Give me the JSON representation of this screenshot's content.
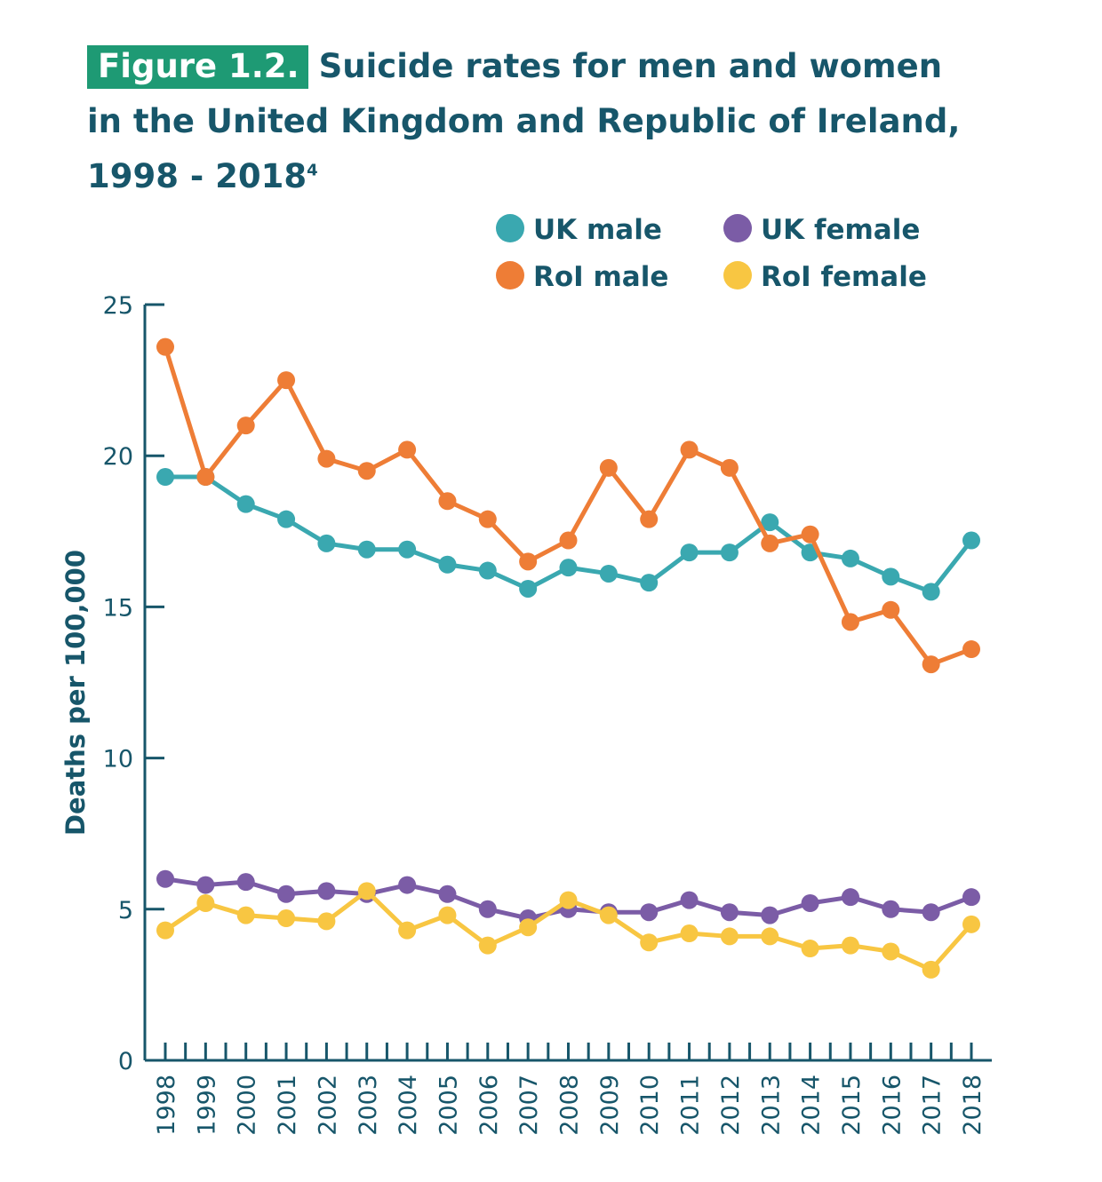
{
  "figure_label": "Figure 1.2.",
  "title_line1": "Suicide rates for men and women",
  "title_line2": "in the United Kingdom and Republic of Ireland,",
  "title_line3": "1998 - 2018",
  "title_footnote": "4",
  "chart_data": {
    "type": "line",
    "title": "Suicide rates for men and women in the United Kingdom and Republic of Ireland, 1998 - 2018",
    "xlabel": "",
    "ylabel": "Deaths per 100,000",
    "ylim": [
      0,
      25
    ],
    "yticks": [
      0,
      5,
      10,
      15,
      20,
      25
    ],
    "grid": false,
    "legend_position": "top-right",
    "categories": [
      "1998",
      "1999",
      "2000",
      "2001",
      "2002",
      "2003",
      "2004",
      "2005",
      "2006",
      "2007",
      "2008",
      "2009",
      "2010",
      "2011",
      "2012",
      "2013",
      "2014",
      "2015",
      "2016",
      "2017",
      "2018"
    ],
    "series": [
      {
        "name": "UK male",
        "color": "#3aa8b0",
        "values": [
          19.3,
          19.3,
          18.4,
          17.9,
          17.1,
          16.9,
          16.9,
          16.4,
          16.2,
          15.6,
          16.3,
          16.1,
          15.8,
          16.8,
          16.8,
          17.8,
          16.8,
          16.6,
          16.0,
          15.5,
          17.2
        ]
      },
      {
        "name": "RoI male",
        "color": "#ee7d36",
        "values": [
          23.6,
          19.3,
          21.0,
          22.5,
          19.9,
          19.5,
          20.2,
          18.5,
          17.9,
          16.5,
          17.2,
          19.6,
          17.9,
          20.2,
          19.6,
          17.1,
          17.4,
          14.5,
          14.9,
          13.1,
          13.6
        ]
      },
      {
        "name": "UK female",
        "color": "#7b5ca6",
        "values": [
          6.0,
          5.8,
          5.9,
          5.5,
          5.6,
          5.5,
          5.8,
          5.5,
          5.0,
          4.7,
          5.0,
          4.9,
          4.9,
          5.3,
          4.9,
          4.8,
          5.2,
          5.4,
          5.0,
          4.9,
          5.4
        ]
      },
      {
        "name": "RoI female",
        "color": "#f8c642",
        "values": [
          4.3,
          5.2,
          4.8,
          4.7,
          4.6,
          5.6,
          4.3,
          4.8,
          3.8,
          4.4,
          5.3,
          4.8,
          3.9,
          4.2,
          4.1,
          4.1,
          3.7,
          3.8,
          3.6,
          3.0,
          4.5
        ]
      }
    ]
  }
}
